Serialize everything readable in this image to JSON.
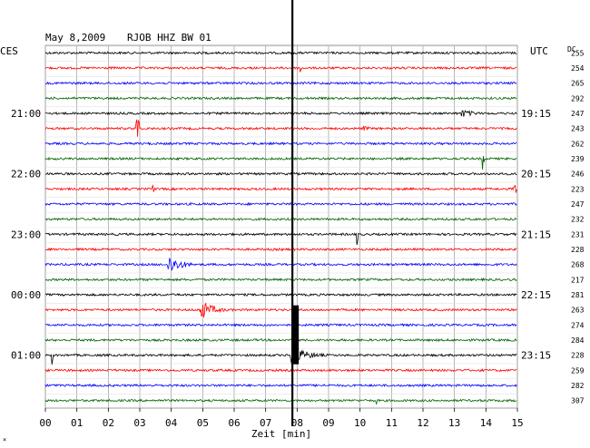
{
  "header": {
    "date": "May 8,2009",
    "station": "RJOB HHZ BW 01",
    "left_zone": "CES",
    "right_zone": "UTC",
    "dc_label": "DC"
  },
  "footer": {
    "xlabel": "Zeit [min]",
    "corner_mark": "×"
  },
  "chart_data": {
    "type": "line",
    "title": "May 8,2009   RJOB HHZ BW 01",
    "xlabel": "Zeit [min]",
    "ylabel": "",
    "x_range": [
      0,
      15
    ],
    "x_tick_labels": [
      "00",
      "01",
      "02",
      "03",
      "04",
      "05",
      "06",
      "07",
      "08",
      "09",
      "10",
      "11",
      "12",
      "13",
      "14",
      "15"
    ],
    "grid": true,
    "trace_count": 24,
    "trace_colors": [
      "#000000",
      "#ff0000",
      "#0000ff",
      "#006400"
    ],
    "color_sequence": [
      "black",
      "red",
      "blue",
      "green"
    ],
    "left_hour_labels": [
      {
        "trace": 4,
        "text": "21:00"
      },
      {
        "trace": 8,
        "text": "22:00"
      },
      {
        "trace": 12,
        "text": "23:00"
      },
      {
        "trace": 16,
        "text": "00:00"
      },
      {
        "trace": 20,
        "text": "01:00"
      }
    ],
    "right_hour_labels": [
      {
        "trace": 4,
        "text": "19:15"
      },
      {
        "trace": 8,
        "text": "20:15"
      },
      {
        "trace": 12,
        "text": "21:15"
      },
      {
        "trace": 16,
        "text": "22:15"
      },
      {
        "trace": 20,
        "text": "23:15"
      }
    ],
    "dc_offsets": [
      "255",
      "254",
      "265",
      "292",
      "247",
      "243",
      "262",
      "239",
      "246",
      "223",
      "247",
      "232",
      "231",
      "228",
      "268",
      "217",
      "281",
      "263",
      "274",
      "284",
      "228",
      "259",
      "282",
      "307"
    ],
    "events": [
      {
        "trace": 1,
        "minute": 8.1,
        "amplitude": 8,
        "duration_min": 0.06
      },
      {
        "trace": 4,
        "minute": 13.2,
        "amplitude": 5,
        "duration_min": 1.3
      },
      {
        "trace": 5,
        "minute": 2.9,
        "amplitude": 16,
        "duration_min": 0.08
      },
      {
        "trace": 5,
        "minute": 10.1,
        "amplitude": 3,
        "duration_min": 0.8
      },
      {
        "trace": 7,
        "minute": 13.9,
        "amplitude": 14,
        "duration_min": 0.05
      },
      {
        "trace": 9,
        "minute": 3.4,
        "amplitude": 5,
        "duration_min": 0.05
      },
      {
        "trace": 9,
        "minute": 14.9,
        "amplitude": 6,
        "duration_min": 0.06
      },
      {
        "trace": 12,
        "minute": 9.9,
        "amplitude": 12,
        "duration_min": 0.06
      },
      {
        "trace": 14,
        "minute": 3.9,
        "amplitude": 11,
        "duration_min": 1.2
      },
      {
        "trace": 17,
        "minute": 4.9,
        "amplitude": 12,
        "duration_min": 1.2
      },
      {
        "trace": 20,
        "minute": 0.2,
        "amplitude": 12,
        "duration_min": 0.06
      },
      {
        "trace": 20,
        "minute": 7.8,
        "amplitude": 10,
        "duration_min": 1.6
      },
      {
        "trace": 23,
        "minute": 10.5,
        "amplitude": 4,
        "duration_min": 0.05
      }
    ],
    "big_event": {
      "minute": 7.85,
      "first_trace": 17,
      "last_trace": 20
    }
  }
}
